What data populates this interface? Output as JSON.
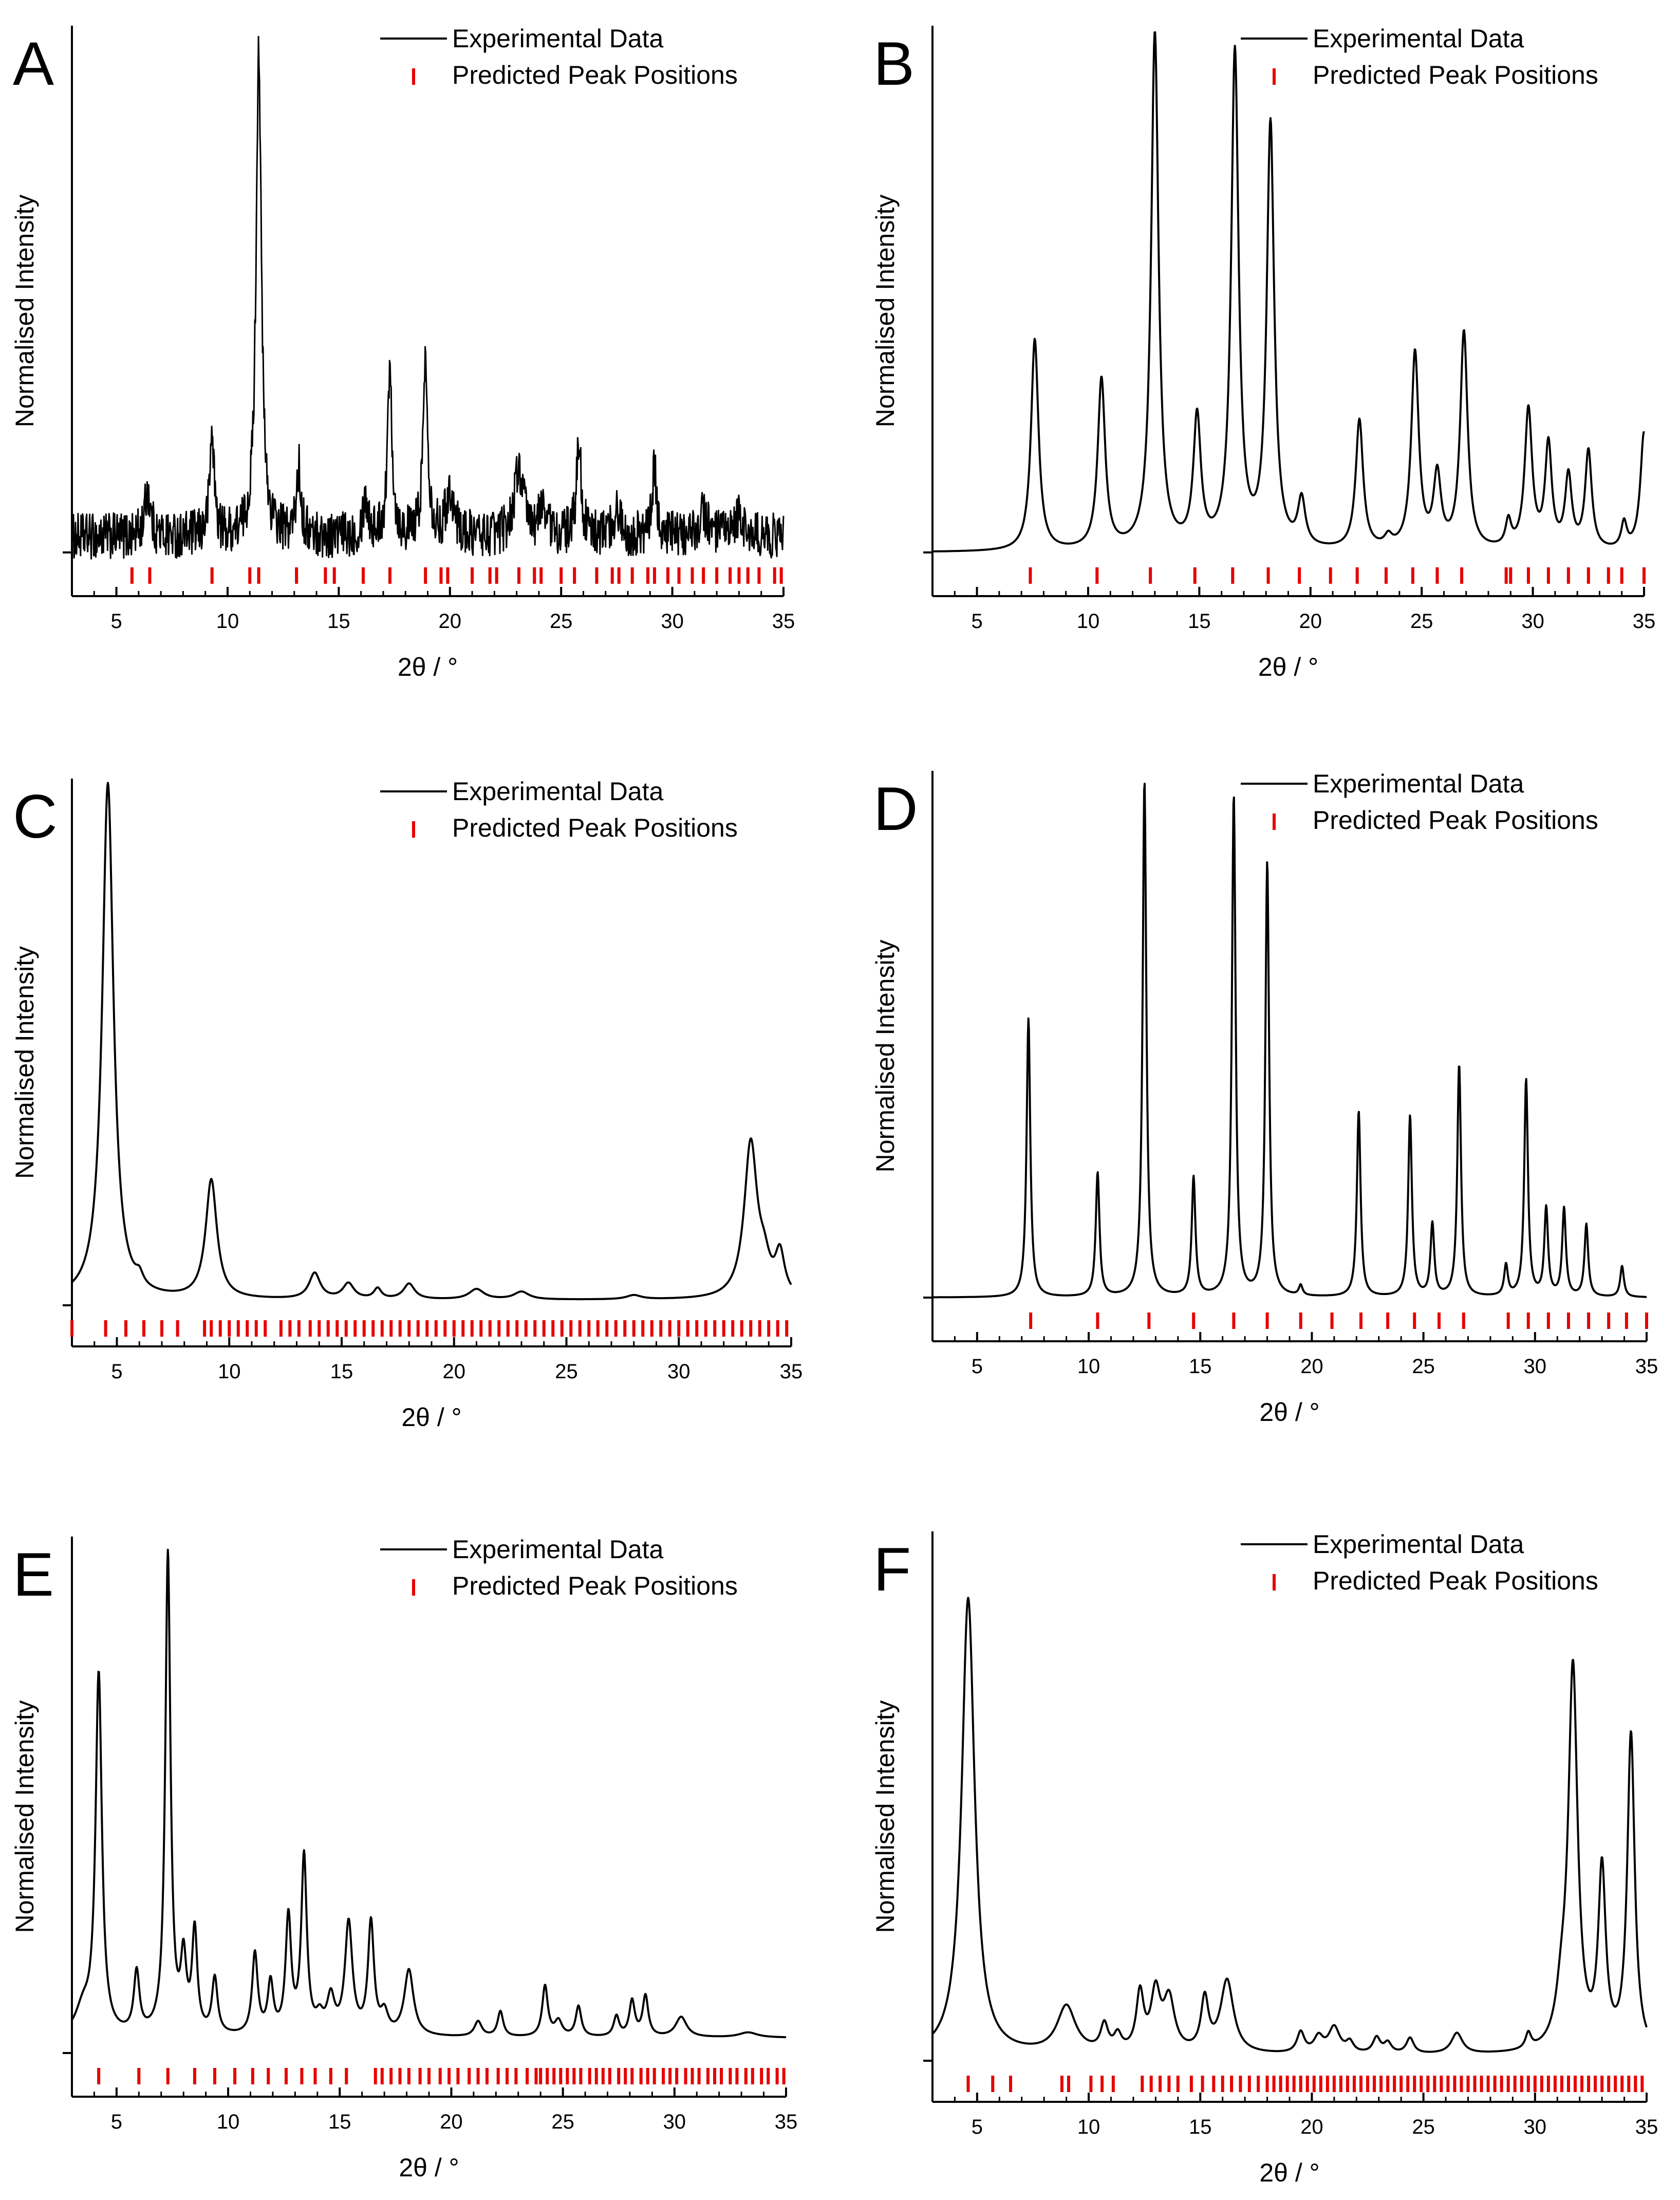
{
  "figure": {
    "experimental_color": "#000000",
    "predicted_color": "#e60000",
    "axis_color": "#000000"
  },
  "chart_data": [
    {
      "panel": "A",
      "type": "line",
      "title": "",
      "xlabel": "2θ / °",
      "ylabel": "Normalised Intensity",
      "xlim": [
        3,
        35
      ],
      "ylim": [
        -0.08,
        1.05
      ],
      "xticks": [
        5,
        10,
        15,
        20,
        25,
        30,
        35
      ],
      "legend": {
        "position": "top-right",
        "entries": [
          "Experimental Data",
          "Predicted Peak Positions"
        ]
      },
      "noise": 0.045,
      "baseline": 0.03,
      "series": [
        {
          "name": "Experimental Data",
          "peaks": [
            [
              6.4,
              0.09,
              0.15
            ],
            [
              9.3,
              0.2,
              0.12
            ],
            [
              11.4,
              0.95,
              0.14
            ],
            [
              13.2,
              0.13,
              0.12
            ],
            [
              16.2,
              0.07,
              0.15
            ],
            [
              17.3,
              0.33,
              0.12
            ],
            [
              18.9,
              0.34,
              0.13
            ],
            [
              20.0,
              0.09,
              0.2
            ],
            [
              23.1,
              0.13,
              0.25
            ],
            [
              24.2,
              0.06,
              0.2
            ],
            [
              25.8,
              0.19,
              0.12
            ],
            [
              29.2,
              0.13,
              0.12
            ],
            [
              27.5,
              0.05,
              0.2
            ],
            [
              31.4,
              0.05,
              0.2
            ],
            [
              33.0,
              0.04,
              0.2
            ]
          ]
        },
        {
          "name": "Predicted Peak Positions",
          "positions": [
            5.7,
            6.5,
            9.3,
            11.0,
            11.4,
            13.1,
            14.4,
            14.8,
            16.1,
            17.3,
            18.9,
            19.6,
            19.9,
            21.0,
            21.8,
            22.1,
            23.1,
            23.8,
            24.1,
            25.0,
            25.6,
            26.6,
            27.3,
            27.6,
            28.2,
            28.9,
            29.2,
            29.8,
            30.3,
            30.9,
            31.4,
            32.0,
            32.6,
            33.0,
            33.4,
            33.9,
            34.6,
            34.9
          ]
        }
      ]
    },
    {
      "panel": "B",
      "type": "line",
      "title": "",
      "xlabel": "2θ / °",
      "ylabel": "Normalised Intensity",
      "xlim": [
        3,
        35
      ],
      "ylim": [
        -0.08,
        1.05
      ],
      "xticks": [
        5,
        10,
        15,
        20,
        25,
        30,
        35
      ],
      "legend": {
        "position": "top-right",
        "entries": [
          "Experimental Data",
          "Predicted Peak Positions"
        ]
      },
      "noise": 0,
      "baseline": 0,
      "series": [
        {
          "name": "Experimental Data",
          "peaks": [
            [
              7.6,
              0.41,
              0.2
            ],
            [
              10.6,
              0.33,
              0.2
            ],
            [
              13.0,
              1.0,
              0.2
            ],
            [
              14.9,
              0.25,
              0.2
            ],
            [
              16.6,
              0.96,
              0.2
            ],
            [
              18.2,
              0.82,
              0.2
            ],
            [
              19.6,
              0.09,
              0.2
            ],
            [
              22.2,
              0.25,
              0.2
            ],
            [
              23.5,
              0.02,
              0.2
            ],
            [
              24.7,
              0.38,
              0.2
            ],
            [
              25.7,
              0.14,
              0.2
            ],
            [
              26.9,
              0.42,
              0.2
            ],
            [
              28.9,
              0.05,
              0.15
            ],
            [
              29.8,
              0.27,
              0.2
            ],
            [
              30.7,
              0.2,
              0.18
            ],
            [
              31.6,
              0.14,
              0.18
            ],
            [
              32.5,
              0.19,
              0.18
            ],
            [
              34.1,
              0.05,
              0.15
            ],
            [
              35.0,
              0.23,
              0.2
            ]
          ]
        },
        {
          "name": "Predicted Peak Positions",
          "positions": [
            7.4,
            10.4,
            12.8,
            14.8,
            16.5,
            18.1,
            19.5,
            20.9,
            22.1,
            23.4,
            24.6,
            25.7,
            26.8,
            28.8,
            29.0,
            29.8,
            30.7,
            31.6,
            32.5,
            33.4,
            34.0,
            35.0
          ]
        }
      ]
    },
    {
      "panel": "C",
      "type": "line",
      "title": "",
      "xlabel": "2θ / °",
      "ylabel": "Normalised Intensity",
      "xlim": [
        3,
        35
      ],
      "ylim": [
        -0.08,
        1.05
      ],
      "xticks": [
        5,
        10,
        15,
        20,
        25,
        30,
        35
      ],
      "legend": {
        "position": "top-right",
        "entries": [
          "Experimental Data",
          "Predicted Peak Positions"
        ]
      },
      "noise": 0,
      "baseline": 0.01,
      "series": [
        {
          "name": "Experimental Data",
          "peaks": [
            [
              4.6,
              1.0,
              0.3
            ],
            [
              6.0,
              0.02,
              0.2
            ],
            [
              9.2,
              0.23,
              0.3
            ],
            [
              13.8,
              0.05,
              0.3
            ],
            [
              15.3,
              0.03,
              0.3
            ],
            [
              16.6,
              0.02,
              0.2
            ],
            [
              18.0,
              0.03,
              0.3
            ],
            [
              21.0,
              0.02,
              0.4
            ],
            [
              23.0,
              0.015,
              0.4
            ],
            [
              28.0,
              0.008,
              0.4
            ],
            [
              33.2,
              0.3,
              0.35
            ],
            [
              33.8,
              0.05,
              0.3
            ],
            [
              34.5,
              0.08,
              0.25
            ]
          ]
        },
        {
          "name": "Predicted Peak Positions",
          "positions": [
            3.0,
            4.5,
            5.4,
            6.2,
            7.0,
            7.7,
            8.9,
            9.2,
            9.6,
            10.0,
            10.4,
            10.8,
            11.2,
            11.6,
            12.3,
            12.7,
            13.1,
            13.6,
            14.0,
            14.4,
            14.8,
            15.2,
            15.6,
            16.0,
            16.4,
            16.8,
            17.2,
            17.6,
            18.0,
            18.4,
            18.8,
            19.2,
            19.6,
            20.0,
            20.4,
            20.8,
            21.2,
            21.6,
            22.0,
            22.4,
            22.8,
            23.2,
            23.6,
            24.0,
            24.4,
            24.8,
            25.2,
            25.6,
            26.0,
            26.4,
            26.8,
            27.2,
            27.6,
            28.0,
            28.4,
            28.8,
            29.2,
            29.6,
            30.0,
            30.4,
            30.8,
            31.2,
            31.6,
            32.0,
            32.4,
            32.8,
            33.2,
            33.6,
            34.0,
            34.4,
            34.8
          ]
        }
      ]
    },
    {
      "panel": "D",
      "type": "line",
      "title": "",
      "xlabel": "2θ / °",
      "ylabel": "Normalised Intensity",
      "xlim": [
        3,
        35
      ],
      "ylim": [
        -0.08,
        1.05
      ],
      "xticks": [
        5,
        10,
        15,
        20,
        25,
        30,
        35
      ],
      "legend": {
        "position": "top-right",
        "entries": [
          "Experimental Data",
          "Predicted Peak Positions"
        ]
      },
      "noise": 0,
      "baseline": 0,
      "series": [
        {
          "name": "Experimental Data",
          "peaks": [
            [
              7.3,
              0.54,
              0.1
            ],
            [
              10.4,
              0.24,
              0.1
            ],
            [
              12.5,
              1.0,
              0.1
            ],
            [
              14.7,
              0.23,
              0.1
            ],
            [
              16.5,
              0.97,
              0.1
            ],
            [
              18.0,
              0.84,
              0.1
            ],
            [
              19.5,
              0.02,
              0.1
            ],
            [
              22.1,
              0.36,
              0.1
            ],
            [
              24.4,
              0.35,
              0.1
            ],
            [
              25.4,
              0.14,
              0.1
            ],
            [
              26.6,
              0.45,
              0.1
            ],
            [
              28.7,
              0.06,
              0.1
            ],
            [
              29.6,
              0.42,
              0.1
            ],
            [
              30.5,
              0.17,
              0.1
            ],
            [
              31.3,
              0.17,
              0.1
            ],
            [
              32.3,
              0.14,
              0.1
            ],
            [
              33.9,
              0.06,
              0.1
            ]
          ]
        },
        {
          "name": "Predicted Peak Positions",
          "positions": [
            7.4,
            10.4,
            12.7,
            14.7,
            16.5,
            18.0,
            19.5,
            20.9,
            22.2,
            23.4,
            24.6,
            25.7,
            26.8,
            28.8,
            29.7,
            30.6,
            31.5,
            32.4,
            33.3,
            34.1,
            35.0
          ]
        }
      ]
    },
    {
      "panel": "E",
      "type": "line",
      "title": "",
      "xlabel": "2θ / °",
      "ylabel": "Normalised Intensity",
      "xlim": [
        3,
        35
      ],
      "ylim": [
        -0.08,
        1.05
      ],
      "xticks": [
        5,
        10,
        15,
        20,
        25,
        30,
        35
      ],
      "legend": {
        "position": "top-right",
        "entries": [
          "Experimental Data",
          "Predicted Peak Positions"
        ]
      },
      "noise": 0,
      "baseline": 0.03,
      "series": [
        {
          "name": "Experimental Data",
          "peaks": [
            [
              3.5,
              0.05,
              0.4
            ],
            [
              4.2,
              0.71,
              0.17
            ],
            [
              5.9,
              0.12,
              0.15
            ],
            [
              7.3,
              0.95,
              0.14
            ],
            [
              8.0,
              0.14,
              0.15
            ],
            [
              8.5,
              0.2,
              0.14
            ],
            [
              9.4,
              0.11,
              0.15
            ],
            [
              11.2,
              0.16,
              0.15
            ],
            [
              11.9,
              0.1,
              0.15
            ],
            [
              12.7,
              0.23,
              0.15
            ],
            [
              13.4,
              0.35,
              0.15
            ],
            [
              14.1,
              0.03,
              0.2
            ],
            [
              14.6,
              0.07,
              0.2
            ],
            [
              15.4,
              0.22,
              0.2
            ],
            [
              16.4,
              0.22,
              0.16
            ],
            [
              17.0,
              0.04,
              0.2
            ],
            [
              18.1,
              0.13,
              0.25
            ],
            [
              21.2,
              0.03,
              0.2
            ],
            [
              22.2,
              0.05,
              0.15
            ],
            [
              24.2,
              0.1,
              0.15
            ],
            [
              24.8,
              0.03,
              0.2
            ],
            [
              25.7,
              0.06,
              0.15
            ],
            [
              27.4,
              0.04,
              0.15
            ],
            [
              28.1,
              0.07,
              0.15
            ],
            [
              28.7,
              0.08,
              0.15
            ],
            [
              30.3,
              0.04,
              0.3
            ],
            [
              33.3,
              0.01,
              0.5
            ]
          ]
        },
        {
          "name": "Predicted Peak Positions",
          "positions": [
            4.2,
            6.0,
            7.3,
            8.5,
            9.4,
            10.3,
            11.1,
            11.8,
            12.6,
            13.3,
            13.9,
            14.6,
            15.3,
            16.6,
            16.9,
            17.3,
            17.7,
            18.1,
            18.6,
            19.0,
            19.5,
            19.9,
            20.3,
            20.8,
            21.2,
            21.6,
            22.1,
            22.5,
            22.9,
            23.4,
            23.8,
            24.0,
            24.3,
            24.6,
            24.9,
            25.2,
            25.5,
            25.8,
            26.2,
            26.5,
            26.8,
            27.1,
            27.5,
            27.8,
            28.1,
            28.5,
            28.8,
            29.1,
            29.5,
            29.8,
            30.1,
            30.5,
            30.8,
            31.1,
            31.5,
            31.8,
            32.1,
            32.5,
            32.8,
            33.2,
            33.5,
            33.9,
            34.2,
            34.6,
            34.9
          ]
        }
      ]
    },
    {
      "panel": "F",
      "type": "line",
      "title": "",
      "xlabel": "2θ / °",
      "ylabel": "Normalised Intensity",
      "xlim": [
        3,
        35
      ],
      "ylim": [
        -0.08,
        1.05
      ],
      "xticks": [
        5,
        10,
        15,
        20,
        25,
        30,
        35
      ],
      "legend": {
        "position": "top-right",
        "entries": [
          "Experimental Data",
          "Predicted Peak Positions"
        ]
      },
      "noise": 0,
      "baseline": 0.01,
      "series": [
        {
          "name": "Experimental Data",
          "peaks": [
            [
              4.6,
              0.88,
              0.35
            ],
            [
              9.0,
              0.09,
              0.5
            ],
            [
              10.7,
              0.05,
              0.2
            ],
            [
              11.3,
              0.03,
              0.2
            ],
            [
              12.3,
              0.11,
              0.2
            ],
            [
              13.0,
              0.11,
              0.25
            ],
            [
              13.6,
              0.1,
              0.3
            ],
            [
              15.2,
              0.1,
              0.2
            ],
            [
              16.2,
              0.14,
              0.35
            ],
            [
              19.5,
              0.04,
              0.2
            ],
            [
              20.3,
              0.03,
              0.25
            ],
            [
              21.0,
              0.05,
              0.3
            ],
            [
              21.7,
              0.02,
              0.2
            ],
            [
              22.9,
              0.03,
              0.2
            ],
            [
              23.4,
              0.02,
              0.2
            ],
            [
              24.4,
              0.03,
              0.2
            ],
            [
              26.5,
              0.04,
              0.3
            ],
            [
              29.7,
              0.03,
              0.15
            ],
            [
              31.2,
              0.08,
              0.3
            ],
            [
              31.7,
              0.73,
              0.25
            ],
            [
              33.0,
              0.34,
              0.2
            ],
            [
              34.3,
              0.61,
              0.2
            ]
          ]
        },
        {
          "name": "Predicted Peak Positions",
          "positions": [
            4.6,
            5.7,
            6.5,
            8.8,
            9.1,
            10.1,
            10.6,
            11.1,
            12.4,
            12.8,
            13.2,
            13.6,
            14.0,
            14.6,
            15.1,
            15.6,
            16.0,
            16.4,
            16.8,
            17.2,
            17.6,
            18.0,
            18.3,
            18.6,
            18.9,
            19.2,
            19.5,
            19.8,
            20.1,
            20.4,
            20.7,
            21.0,
            21.3,
            21.6,
            21.9,
            22.2,
            22.5,
            22.8,
            23.1,
            23.4,
            23.7,
            24.0,
            24.3,
            24.6,
            24.9,
            25.2,
            25.5,
            25.8,
            26.1,
            26.4,
            26.7,
            27.0,
            27.3,
            27.6,
            27.9,
            28.2,
            28.5,
            28.8,
            29.1,
            29.4,
            29.7,
            30.0,
            30.3,
            30.6,
            30.9,
            31.2,
            31.5,
            31.8,
            32.1,
            32.4,
            32.7,
            33.0,
            33.3,
            33.6,
            33.9,
            34.2,
            34.5,
            34.8
          ]
        }
      ]
    }
  ]
}
